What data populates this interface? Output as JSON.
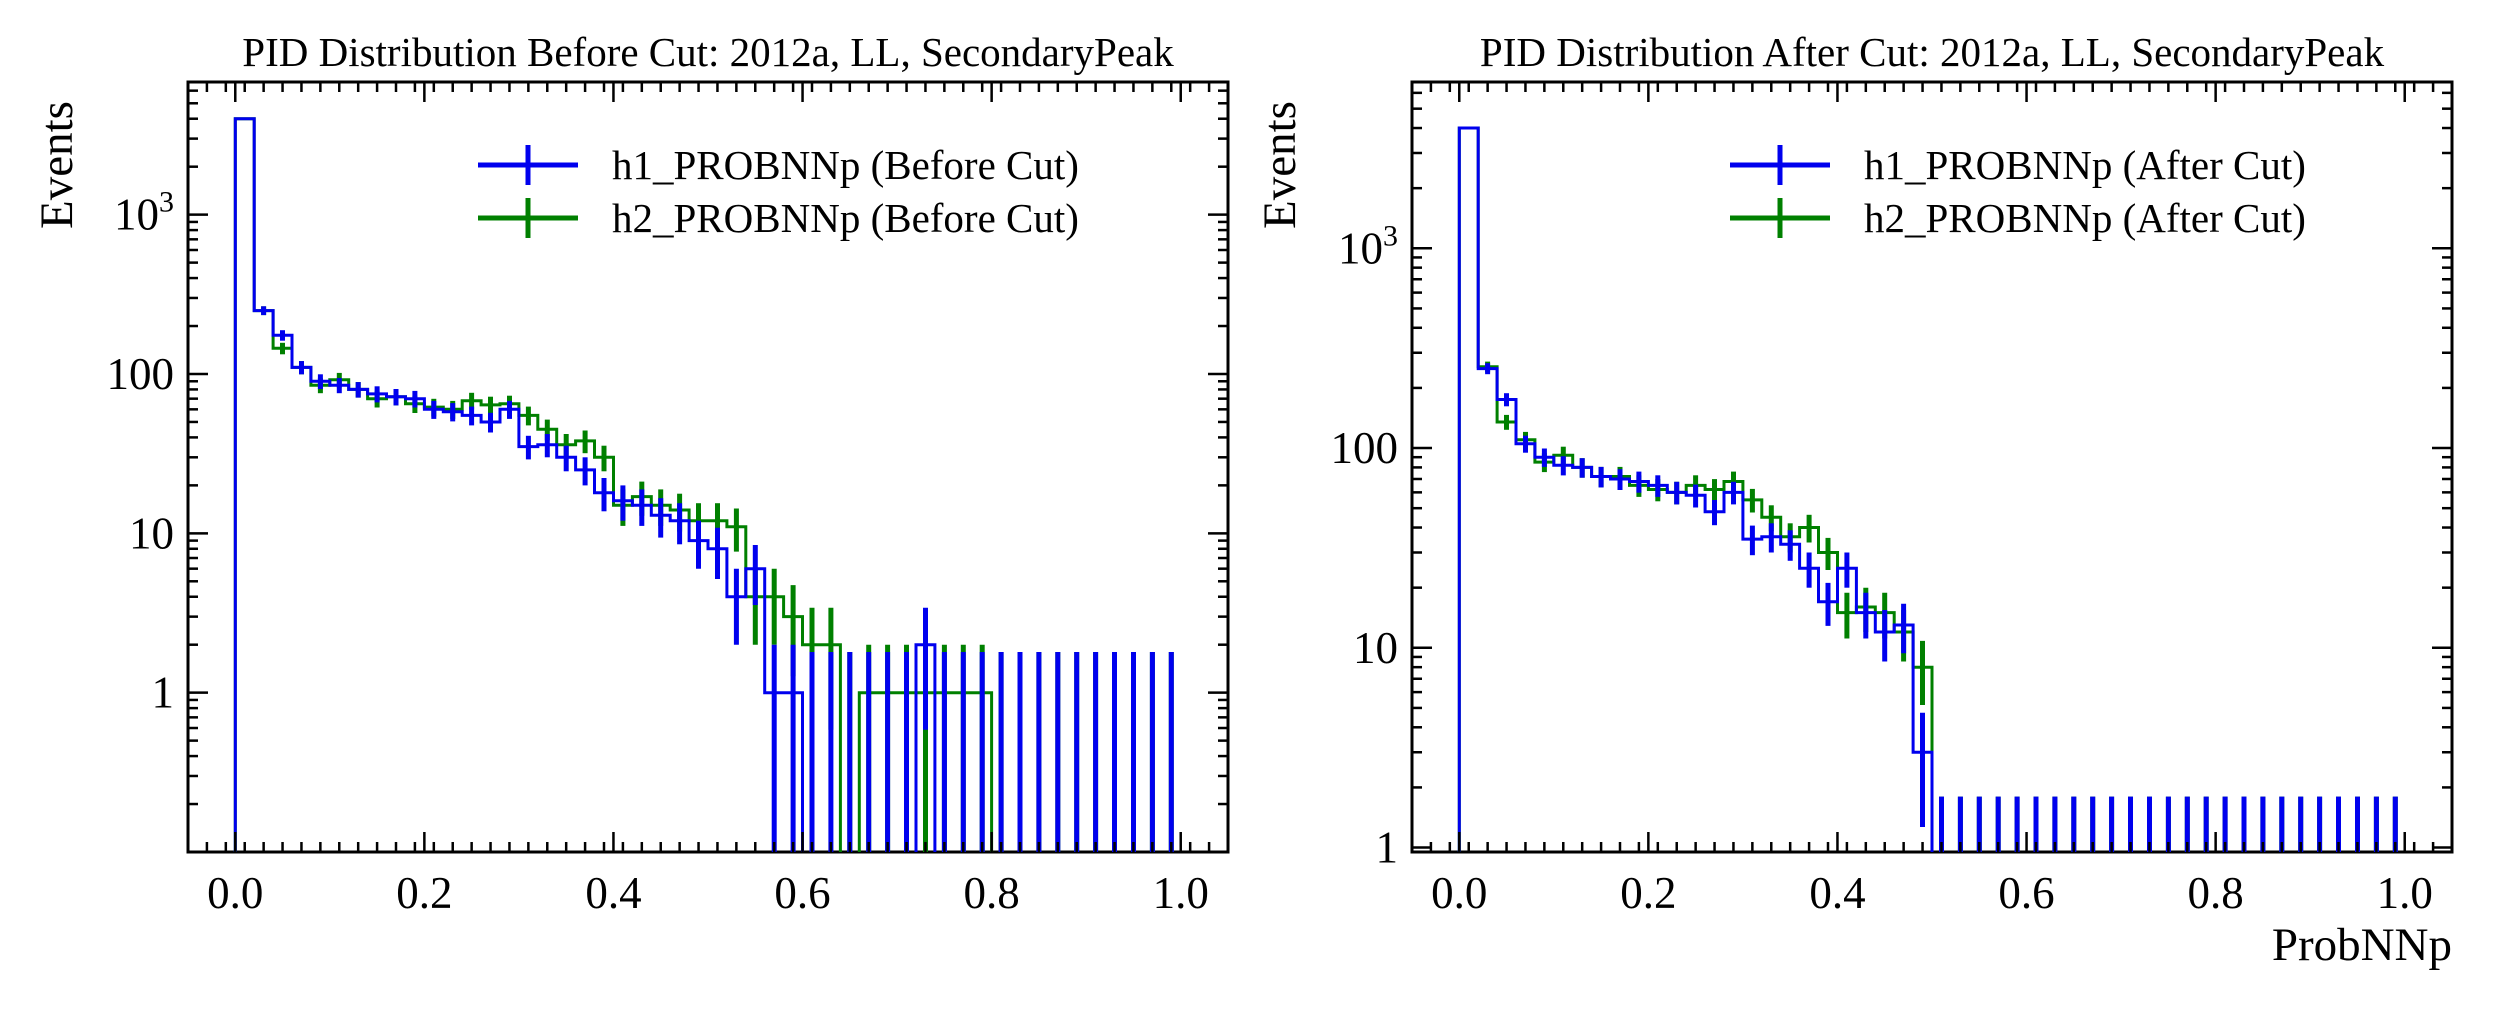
{
  "chart_data": [
    {
      "type": "histogram-errorbar",
      "title": "PID Distribution Before Cut: 2012a, LL, SecondaryPeak",
      "xlabel": "",
      "ylabel": "Events",
      "yscale": "log",
      "xlim": [
        -0.05,
        1.05
      ],
      "ylim": [
        0.1,
        6800
      ],
      "xticks": [
        "0.0",
        "0.2",
        "0.4",
        "0.6",
        "0.8",
        "1.0"
      ],
      "yticks": [
        {
          "value": 1,
          "label": "1"
        },
        {
          "value": 10,
          "label": "10"
        },
        {
          "value": 100,
          "label": "100"
        },
        {
          "value": 1000,
          "label": "10",
          "sup": "3"
        }
      ],
      "legend_position": "top-right",
      "bin_width": 0.02,
      "series": [
        {
          "name": "h1_PROBNNp (Before Cut)",
          "color": "#0000ee",
          "values": [
            4000,
            250,
            175,
            110,
            90,
            85,
            80,
            75,
            72,
            70,
            60,
            58,
            55,
            50,
            60,
            35,
            36,
            30,
            25,
            18,
            16,
            15,
            13,
            12,
            9,
            8,
            4,
            6,
            1,
            1,
            0,
            0,
            0,
            0,
            0,
            0,
            2,
            0,
            0,
            0,
            0,
            0,
            0,
            0,
            0,
            0,
            0,
            0,
            0,
            0
          ]
        },
        {
          "name": "h2_PROBNNp (Before Cut)",
          "color": "#008000",
          "values": [
            4000,
            250,
            145,
            110,
            85,
            92,
            80,
            70,
            72,
            65,
            62,
            60,
            68,
            64,
            65,
            55,
            45,
            36,
            38,
            30,
            15,
            17,
            15,
            14,
            12,
            12,
            11,
            4,
            4,
            3,
            2,
            2,
            0,
            1,
            1,
            1,
            1,
            1,
            1,
            1,
            0,
            0,
            0,
            0,
            0,
            0,
            0,
            0,
            0,
            0
          ]
        }
      ]
    },
    {
      "type": "histogram-errorbar",
      "title": "PID Distribution After Cut: 2012a, LL, SecondaryPeak",
      "xlabel": "ProbNNp",
      "ylabel": "Events",
      "yscale": "log",
      "xlim": [
        -0.05,
        1.05
      ],
      "ylim": [
        0.95,
        6800
      ],
      "xticks": [
        "0.0",
        "0.2",
        "0.4",
        "0.6",
        "0.8",
        "1.0"
      ],
      "yticks": [
        {
          "value": 1,
          "label": "1"
        },
        {
          "value": 10,
          "label": "10"
        },
        {
          "value": 100,
          "label": "100"
        },
        {
          "value": 1000,
          "label": "10",
          "sup": "3"
        }
      ],
      "legend_position": "top-right",
      "bin_width": 0.02,
      "series": [
        {
          "name": "h1_PROBNNp (After Cut)",
          "color": "#0000ee",
          "values": [
            4000,
            250,
            175,
            105,
            90,
            82,
            80,
            72,
            70,
            68,
            65,
            60,
            58,
            48,
            60,
            35,
            36,
            33,
            25,
            17,
            25,
            15,
            12,
            13,
            3,
            0,
            0,
            0,
            0,
            0,
            0,
            0,
            0,
            0,
            0,
            0,
            0,
            0,
            0,
            0,
            0,
            0,
            0,
            0,
            0,
            0,
            0,
            0,
            0,
            0
          ]
        },
        {
          "name": "h2_PROBNNp (After Cut)",
          "color": "#008000",
          "values": [
            4000,
            255,
            135,
            110,
            85,
            92,
            80,
            72,
            72,
            65,
            62,
            60,
            65,
            62,
            68,
            55,
            45,
            36,
            40,
            30,
            15,
            16,
            15,
            12,
            8,
            0,
            0,
            0,
            0,
            0,
            0,
            0,
            0,
            0,
            0,
            0,
            0,
            0,
            0,
            0,
            0,
            0,
            0,
            0,
            0,
            0,
            0,
            0,
            0,
            0
          ]
        }
      ]
    }
  ]
}
